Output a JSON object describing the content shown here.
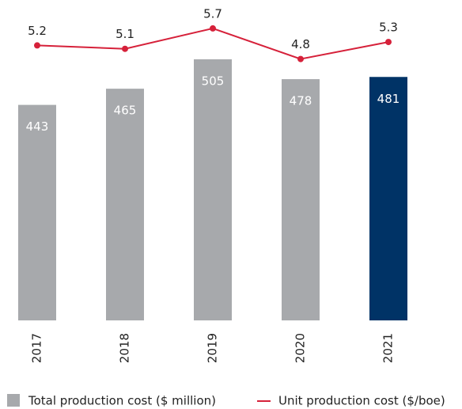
{
  "chart_data": {
    "type": "bar",
    "categories": [
      "2017",
      "2018",
      "2019",
      "2020",
      "2021"
    ],
    "series": [
      {
        "name": "Total production cost ($ million)",
        "type": "bar",
        "color": "#a7a9ac",
        "highlight_color": "#003366",
        "values": [
          443,
          465,
          505,
          478,
          481
        ]
      },
      {
        "name": "Unit production cost ($/boe)",
        "type": "line",
        "axis": "y2",
        "color": "#d6213a",
        "values": [
          5.2,
          5.1,
          5.7,
          4.8,
          5.3
        ]
      }
    ],
    "ylim": [
      150,
      520
    ],
    "y2lim": [
      4,
      6
    ],
    "grid": false
  }
}
